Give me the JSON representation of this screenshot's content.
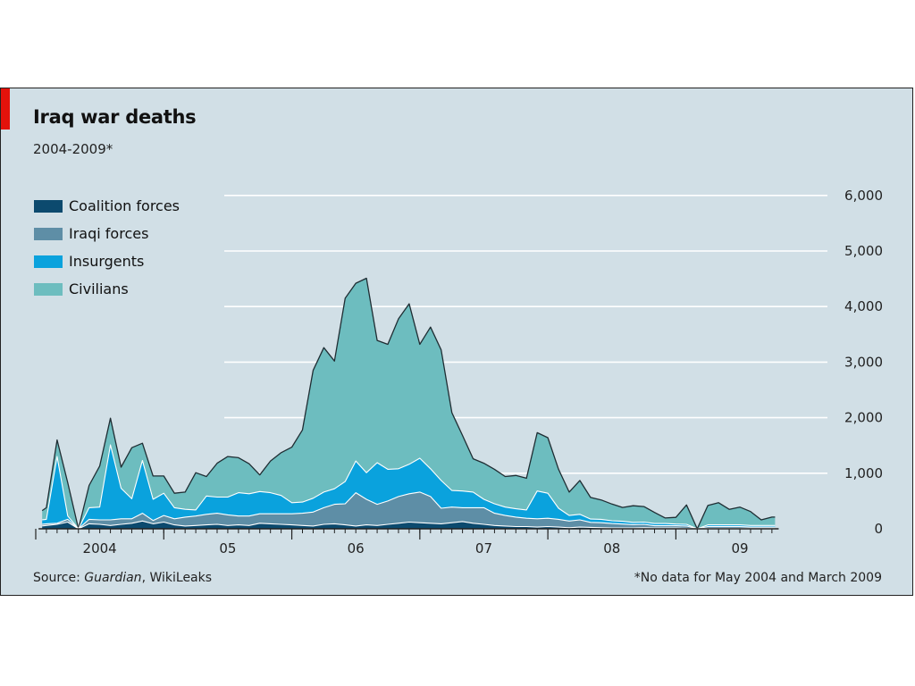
{
  "accent_color": "#e3120b",
  "background_color": "#d1dfe6",
  "header": {
    "title": "Iraq war deaths",
    "subtitle": "2004-2009*"
  },
  "footer": {
    "source_prefix": "Source: ",
    "source_italic": "Guardian",
    "source_suffix": ", WikiLeaks",
    "note": "*No data for May 2004 and March 2009"
  },
  "chart_data": {
    "type": "area",
    "stacked": true,
    "title": "Iraq war deaths",
    "subtitle": "2004-2009*",
    "ylim": [
      0,
      6000
    ],
    "yticks": [
      0,
      1000,
      2000,
      3000,
      4000,
      5000,
      6000
    ],
    "ytick_labels": [
      "0",
      "1,000",
      "2,000",
      "3,000",
      "4,000",
      "5,000",
      "6,000"
    ],
    "grid": true,
    "legend_position": "top-left",
    "x_start_index": 0.6,
    "x_end_index": 69.3,
    "x": [
      "2004-01",
      "2004-02",
      "2004-03",
      "2004-04",
      "2004-05",
      "2004-06",
      "2004-07",
      "2004-08",
      "2004-09",
      "2004-10",
      "2004-11",
      "2004-12",
      "2005-01",
      "2005-02",
      "2005-03",
      "2005-04",
      "2005-05",
      "2005-06",
      "2005-07",
      "2005-08",
      "2005-09",
      "2005-10",
      "2005-11",
      "2005-12",
      "2006-01",
      "2006-02",
      "2006-03",
      "2006-04",
      "2006-05",
      "2006-06",
      "2006-07",
      "2006-08",
      "2006-09",
      "2006-10",
      "2006-11",
      "2006-12",
      "2007-01",
      "2007-02",
      "2007-03",
      "2007-04",
      "2007-05",
      "2007-06",
      "2007-07",
      "2007-08",
      "2007-09",
      "2007-10",
      "2007-11",
      "2007-12",
      "2008-01",
      "2008-02",
      "2008-03",
      "2008-04",
      "2008-05",
      "2008-06",
      "2008-07",
      "2008-08",
      "2008-09",
      "2008-10",
      "2008-11",
      "2008-12",
      "2009-01",
      "2009-02",
      "2009-03",
      "2009-04",
      "2009-05",
      "2009-06",
      "2009-07",
      "2009-08",
      "2009-09",
      "2009-10"
    ],
    "year_ticks": [
      {
        "label": "2004",
        "index": 0
      },
      {
        "label": "05",
        "index": 12
      },
      {
        "label": "06",
        "index": 24
      },
      {
        "label": "07",
        "index": 36
      },
      {
        "label": "08",
        "index": 48
      },
      {
        "label": "09",
        "index": 60
      }
    ],
    "gaps": [
      "2004-05",
      "2009-03"
    ],
    "series": [
      {
        "name": "Coalition forces",
        "color": "#0c4a6e",
        "values": [
          40,
          60,
          80,
          120,
          0,
          90,
          80,
          60,
          80,
          100,
          140,
          90,
          120,
          70,
          50,
          60,
          70,
          80,
          60,
          70,
          60,
          100,
          90,
          80,
          70,
          60,
          50,
          80,
          90,
          70,
          50,
          70,
          60,
          80,
          100,
          120,
          110,
          100,
          90,
          110,
          130,
          100,
          80,
          60,
          50,
          40,
          40,
          30,
          40,
          30,
          20,
          30,
          25,
          20,
          15,
          15,
          15,
          20,
          15,
          15,
          15,
          10,
          0,
          10,
          10,
          10,
          10,
          10,
          10,
          10
        ]
      },
      {
        "name": "Iraqi forces",
        "color": "#5e8ea6",
        "values": [
          30,
          30,
          20,
          50,
          0,
          80,
          80,
          100,
          100,
          80,
          140,
          60,
          120,
          110,
          160,
          170,
          190,
          200,
          190,
          160,
          170,
          170,
          180,
          190,
          200,
          220,
          250,
          300,
          350,
          380,
          600,
          460,
          380,
          420,
          480,
          510,
          550,
          480,
          280,
          280,
          250,
          280,
          300,
          220,
          190,
          170,
          150,
          150,
          150,
          140,
          120,
          130,
          90,
          90,
          80,
          70,
          60,
          60,
          40,
          40,
          40,
          40,
          0,
          30,
          30,
          30,
          30,
          20,
          20,
          20
        ]
      },
      {
        "name": "Insurgents",
        "color": "#0aa2dd",
        "values": [
          80,
          80,
          1200,
          60,
          0,
          210,
          230,
          1350,
          550,
          360,
          950,
          380,
          400,
          200,
          140,
          110,
          330,
          290,
          320,
          420,
          400,
          400,
          380,
          330,
          200,
          200,
          250,
          280,
          280,
          400,
          570,
          480,
          750,
          570,
          500,
          530,
          610,
          500,
          500,
          300,
          300,
          280,
          150,
          170,
          150,
          150,
          150,
          500,
          450,
          200,
          100,
          100,
          60,
          60,
          50,
          50,
          40,
          40,
          40,
          40,
          30,
          30,
          0,
          30,
          30,
          30,
          30,
          30,
          30,
          30
        ]
      },
      {
        "name": "Civilians",
        "color": "#6dbdbf",
        "values": [
          100,
          210,
          300,
          600,
          0,
          400,
          740,
          480,
          380,
          920,
          310,
          420,
          310,
          260,
          310,
          670,
          350,
          610,
          730,
          630,
          540,
          300,
          570,
          770,
          1000,
          1300,
          2300,
          2600,
          2300,
          3300,
          3200,
          3500,
          2200,
          2250,
          2700,
          2890,
          2050,
          2550,
          2350,
          1400,
          1000,
          600,
          650,
          620,
          550,
          600,
          570,
          1050,
          1000,
          700,
          420,
          610,
          390,
          350,
          300,
          250,
          300,
          280,
          200,
          100,
          120,
          350,
          0,
          350,
          400,
          280,
          320,
          250,
          100,
          150
        ]
      }
    ]
  }
}
